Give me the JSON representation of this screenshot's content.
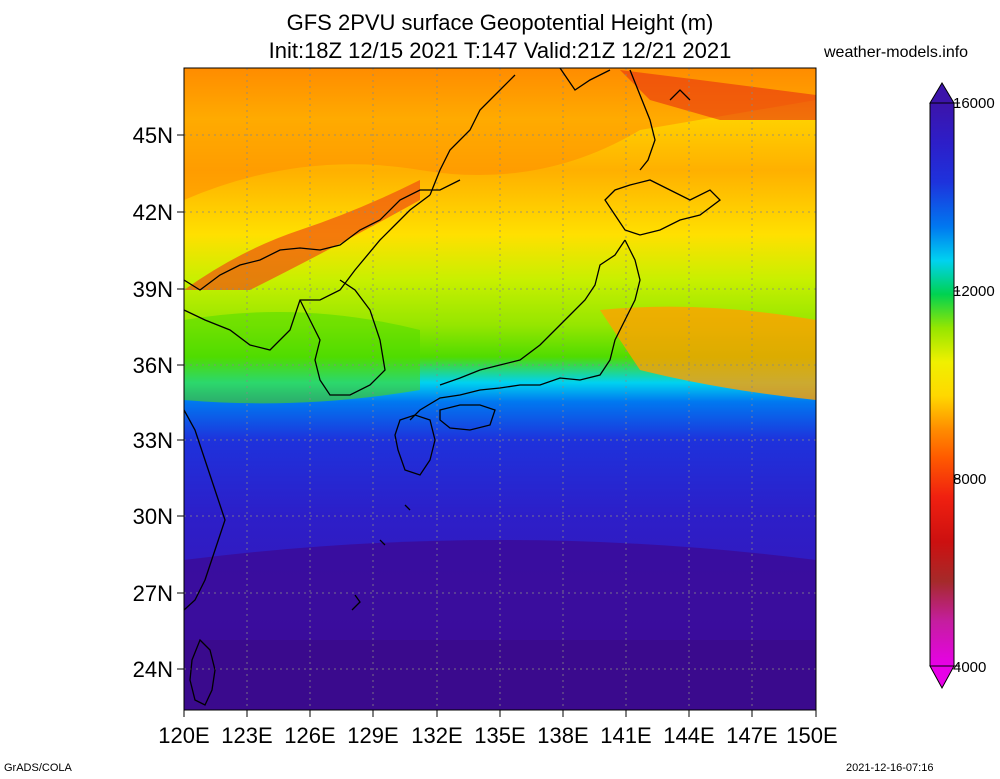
{
  "title_line1": "GFS 2PVU surface Geopotential Height (m)",
  "title_line2": "Init:18Z 12/15 2021 T:147 Valid:21Z 12/21 2021",
  "site": "weather-models.info",
  "footer_left": "GrADS/COLA",
  "footer_right": "2021-12-16-07:16",
  "lat_labels": [
    "45N",
    "42N",
    "39N",
    "36N",
    "33N",
    "30N",
    "27N",
    "24N"
  ],
  "lon_labels": [
    "120E",
    "123E",
    "126E",
    "129E",
    "132E",
    "135E",
    "138E",
    "141E",
    "144E",
    "147E",
    "150E"
  ],
  "colorbar": {
    "labels": [
      "16000",
      "12000",
      "8000",
      "4000"
    ],
    "colors": [
      "#e800e8",
      "#c41e9e",
      "#a52a2a",
      "#cc1010",
      "#f02010",
      "#ff5a00",
      "#ff8c00",
      "#ffb000",
      "#ffd800",
      "#f0f000",
      "#c8f000",
      "#96e600",
      "#50dc00",
      "#00d250",
      "#00e6b4",
      "#00d2f0",
      "#00a0ff",
      "#0078f0",
      "#0050e6",
      "#1e32dc",
      "#2d1ec8",
      "#3c14aa",
      "#4b0a8c"
    ]
  },
  "map_region": "Japan and surrounding seas"
}
